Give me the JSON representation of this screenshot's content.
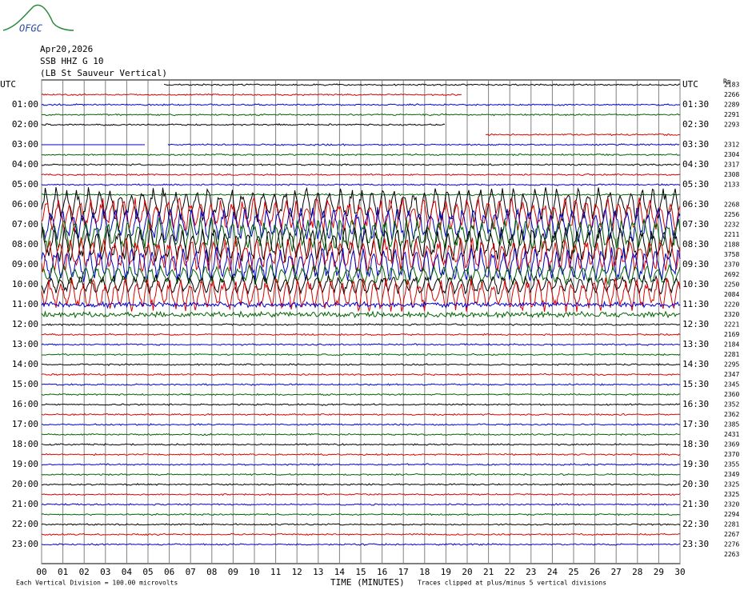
{
  "logo": "OFGC",
  "header": {
    "date": "Apr20,2026",
    "station": "SSB HHZ G 10",
    "site": "(LB St Sauveur Vertical)"
  },
  "left_labels": [
    "UTC",
    "01:00",
    "02:00",
    "03:00",
    "04:00",
    "05:00",
    "06:00",
    "07:00",
    "08:00",
    "09:00",
    "10:00",
    "11:00",
    "12:00",
    "13:00",
    "14:00",
    "15:00",
    "16:00",
    "17:00",
    "18:00",
    "19:00",
    "20:00",
    "21:00",
    "22:00",
    "23:00"
  ],
  "right_labels": [
    "UTC",
    "01:30",
    "02:30",
    "03:30",
    "04:30",
    "05:30",
    "06:30",
    "07:30",
    "08:30",
    "09:30",
    "10:30",
    "11:30",
    "12:30",
    "13:30",
    "14:30",
    "15:30",
    "16:30",
    "17:30",
    "18:30",
    "19:30",
    "20:30",
    "21:30",
    "22:30",
    "23:30"
  ],
  "right_header": "Rp",
  "row_values": [
    2183,
    2266,
    2289,
    2291,
    2293,
    null,
    2312,
    2304,
    2317,
    2308,
    2133,
    null,
    2268,
    2256,
    2232,
    2211,
    2188,
    3758,
    2370,
    2692,
    2250,
    2084,
    2220,
    2320,
    2221,
    2169,
    2184,
    2281,
    2295,
    2347,
    2345,
    2360,
    2352,
    2362,
    2385,
    2431,
    2369,
    2370,
    2355,
    2349,
    2325,
    2325,
    2320,
    2294,
    2281,
    2267,
    2276,
    2263
  ],
  "x_ticks": [
    "00",
    "01",
    "02",
    "03",
    "04",
    "05",
    "06",
    "07",
    "08",
    "09",
    "10",
    "11",
    "12",
    "13",
    "14",
    "15",
    "16",
    "17",
    "18",
    "19",
    "20",
    "21",
    "22",
    "23",
    "24",
    "25",
    "26",
    "27",
    "28",
    "29",
    "30"
  ],
  "footer": {
    "scale": "Each Vertical Division =  100.00 microvolts",
    "axis_title": "TIME (MINUTES)",
    "clip": "Traces clipped at plus/minus 5 vertical divisions"
  }
}
